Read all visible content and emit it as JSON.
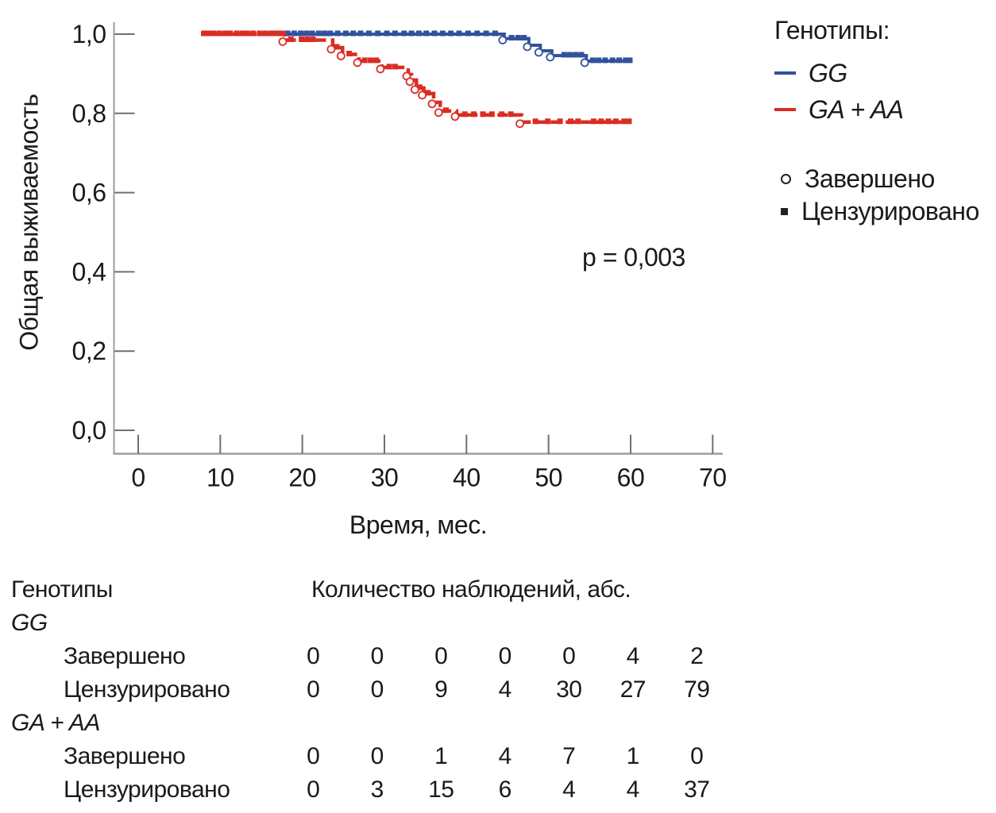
{
  "figure": {
    "y_axis_title": "Общая выживаемость",
    "x_axis_title": "Время, мес.",
    "p_value_label": "p = 0,003"
  },
  "legend": {
    "title": "Генотипы:",
    "series": [
      {
        "label": "GG",
        "color": "#31519b"
      },
      {
        "label": "GA + AA",
        "color": "#d92d23"
      }
    ],
    "markers": [
      {
        "label": "Завершено",
        "type": "circle"
      },
      {
        "label": "Цензурировано",
        "type": "square"
      }
    ]
  },
  "chart_data": {
    "type": "line",
    "kind": "kaplan-meier-step",
    "title": "",
    "xlabel": "Время, мес.",
    "ylabel": "Общая выживаемость",
    "xlim": [
      0,
      70
    ],
    "ylim": [
      0.0,
      1.0
    ],
    "grid": false,
    "legend_position": "right",
    "annotation": "p = 0,003",
    "x_ticks": [
      {
        "value": 0,
        "label": "0"
      },
      {
        "value": 10,
        "label": "10"
      },
      {
        "value": 20,
        "label": "20"
      },
      {
        "value": 30,
        "label": "30"
      },
      {
        "value": 40,
        "label": "40"
      },
      {
        "value": 50,
        "label": "50"
      },
      {
        "value": 60,
        "label": "60"
      },
      {
        "value": 70,
        "label": "70"
      }
    ],
    "y_ticks": [
      {
        "value": 0.0,
        "label": "0,0"
      },
      {
        "value": 0.2,
        "label": "0,2"
      },
      {
        "value": 0.4,
        "label": "0,4"
      },
      {
        "value": 0.6,
        "label": "0,6"
      },
      {
        "value": 0.8,
        "label": "0,8"
      },
      {
        "value": 1.0,
        "label": "1,0"
      }
    ],
    "series": [
      {
        "name": "GG",
        "color": "#31519b",
        "style": "solid",
        "end_time": 60,
        "steps": [
          [
            15.3,
            1.0
          ],
          [
            44.6,
            0.989
          ],
          [
            47.6,
            0.972
          ],
          [
            49.0,
            0.958
          ],
          [
            50.4,
            0.946
          ],
          [
            54.6,
            0.932
          ]
        ],
        "event_times": [
          44.6,
          47.6,
          49.0,
          50.4,
          54.6
        ],
        "censored_times": [
          16.6,
          17.4,
          18.2,
          19.0,
          19.8,
          20.5,
          21.2,
          22.0,
          22.7,
          23.4,
          24.3,
          25.3,
          26.2,
          27.1,
          28.1,
          29.2,
          30.3,
          31.3,
          32.4,
          33.3,
          34.2,
          35.1,
          36.1,
          37.1,
          38.1,
          39.1,
          40.2,
          41.3,
          42.4,
          43.5,
          45.5,
          46.3,
          47.0,
          51.9,
          52.6,
          53.3,
          54.0,
          55.4,
          56.1,
          56.9,
          57.8,
          58.6,
          59.4,
          59.9
        ]
      },
      {
        "name": "GA + AA",
        "color": "#d92d23",
        "style": "dashed",
        "end_time": 60,
        "steps": [
          [
            7.65,
            1.0
          ],
          [
            17.8,
            0.985
          ],
          [
            23.7,
            0.966
          ],
          [
            24.9,
            0.949
          ],
          [
            26.9,
            0.932
          ],
          [
            29.7,
            0.916
          ],
          [
            32.9,
            0.898
          ],
          [
            33.3,
            0.884
          ],
          [
            33.9,
            0.864
          ],
          [
            34.8,
            0.85
          ],
          [
            36.0,
            0.828
          ],
          [
            36.8,
            0.806
          ],
          [
            38.8,
            0.796
          ],
          [
            46.7,
            0.778
          ]
        ],
        "event_times": [
          17.8,
          23.7,
          24.9,
          26.9,
          29.7,
          32.9,
          33.3,
          33.9,
          34.8,
          36.0,
          36.8,
          38.8,
          46.7
        ],
        "censored_times": [
          8.0,
          8.6,
          9.2,
          9.9,
          10.6,
          11.2,
          12.0,
          12.7,
          13.3,
          14.0,
          14.8,
          15.5,
          16.2,
          16.9,
          17.5,
          18.6,
          19.9,
          20.6,
          21.3,
          24.2,
          25.7,
          27.6,
          28.3,
          29.0,
          30.6,
          31.3,
          34.3,
          35.3,
          37.5,
          39.8,
          40.9,
          42.0,
          43.1,
          44.3,
          45.4,
          48.4,
          49.9,
          51.4,
          52.7,
          53.6,
          55.5,
          56.4,
          57.3,
          58.2,
          59.2,
          59.8
        ]
      }
    ]
  },
  "table": {
    "header_left": "Генотипы",
    "header_right": "Количество наблюдений, абс.",
    "groups": [
      {
        "name": "GG",
        "rows": [
          {
            "label": "Завершено",
            "values": [
              "0",
              "0",
              "0",
              "0",
              "0",
              "4",
              "2"
            ]
          },
          {
            "label": "Цензурировано",
            "values": [
              "0",
              "0",
              "9",
              "4",
              "30",
              "27",
              "79"
            ]
          }
        ]
      },
      {
        "name": "GA + AA",
        "rows": [
          {
            "label": "Завершено",
            "values": [
              "0",
              "0",
              "1",
              "4",
              "7",
              "1",
              "0"
            ]
          },
          {
            "label": "Цензурировано",
            "values": [
              "0",
              "3",
              "15",
              "6",
              "4",
              "4",
              "37"
            ]
          }
        ]
      }
    ]
  }
}
